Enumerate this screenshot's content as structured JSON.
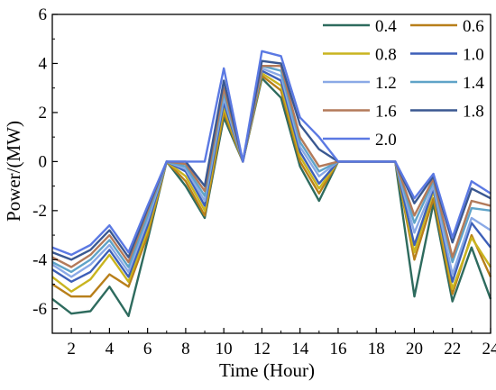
{
  "chart_data": {
    "type": "line",
    "xlabel": "Time (Hour)",
    "ylabel": "Power/(MW)",
    "xlim": [
      1,
      24
    ],
    "ylim": [
      -7,
      6
    ],
    "xticks": [
      2,
      4,
      6,
      8,
      10,
      12,
      14,
      16,
      18,
      20,
      22,
      24
    ],
    "yticks": [
      -6,
      -4,
      -2,
      0,
      2,
      4,
      6
    ],
    "grid": false,
    "legend_position": "top-right",
    "legend_columns": 2,
    "x": [
      1,
      2,
      3,
      4,
      5,
      6,
      7,
      8,
      9,
      10,
      11,
      12,
      13,
      14,
      15,
      16,
      17,
      18,
      19,
      20,
      21,
      22,
      23,
      24
    ],
    "series": [
      {
        "name": "0.4",
        "color": "#2e6b5e",
        "values": [
          -5.6,
          -6.2,
          -6.1,
          -5.1,
          -6.3,
          -3.2,
          0,
          -1.0,
          -2.3,
          1.8,
          0,
          3.4,
          2.6,
          -0.2,
          -1.6,
          0,
          0,
          0,
          0,
          -5.5,
          -1.7,
          -5.7,
          -3.5,
          -5.6
        ]
      },
      {
        "name": "0.6",
        "color": "#b87f1a",
        "values": [
          -5.0,
          -5.5,
          -5.5,
          -4.6,
          -5.1,
          -3.0,
          0,
          -0.8,
          -2.2,
          2.0,
          0,
          3.5,
          2.9,
          0.0,
          -1.3,
          0,
          0,
          0,
          0,
          -4.0,
          -1.5,
          -5.4,
          -3.0,
          -4.7
        ]
      },
      {
        "name": "0.8",
        "color": "#c9b41f",
        "values": [
          -4.7,
          -5.3,
          -4.8,
          -3.8,
          -4.9,
          -2.8,
          0,
          -0.6,
          -2.0,
          2.2,
          0,
          3.6,
          3.1,
          0.2,
          -1.1,
          0,
          0,
          0,
          0,
          -3.7,
          -1.2,
          -5.2,
          -3.1,
          -4.3
        ]
      },
      {
        "name": "1.0",
        "color": "#3d5fb8",
        "values": [
          -4.4,
          -4.9,
          -4.5,
          -3.6,
          -4.7,
          -2.6,
          0,
          -0.4,
          -1.8,
          2.4,
          0,
          3.7,
          3.3,
          0.4,
          -0.9,
          0,
          0,
          0,
          0,
          -3.4,
          -1.1,
          -4.9,
          -2.5,
          -3.5
        ]
      },
      {
        "name": "1.2",
        "color": "#8aa9e6",
        "values": [
          -4.2,
          -4.7,
          -4.2,
          -3.4,
          -4.5,
          -2.4,
          0,
          -0.3,
          -1.6,
          2.6,
          0,
          3.8,
          3.5,
          0.6,
          -0.6,
          0,
          0,
          0,
          0,
          -2.9,
          -1.0,
          -4.6,
          -2.3,
          -2.8
        ]
      },
      {
        "name": "1.4",
        "color": "#5fa3c8",
        "values": [
          -4.1,
          -4.5,
          -4.0,
          -3.2,
          -4.3,
          -2.2,
          0,
          -0.2,
          -1.4,
          2.8,
          0,
          3.9,
          3.7,
          0.8,
          -0.4,
          0,
          0,
          0,
          0,
          -2.5,
          -0.8,
          -4.1,
          -1.9,
          -2.0
        ]
      },
      {
        "name": "1.6",
        "color": "#b37a5a",
        "values": [
          -3.9,
          -4.3,
          -3.8,
          -3.0,
          -4.1,
          -2.0,
          0,
          -0.1,
          -1.2,
          3.0,
          0,
          3.9,
          3.9,
          1.0,
          -0.2,
          0,
          0,
          0,
          0,
          -2.2,
          -0.7,
          -3.9,
          -1.6,
          -1.8
        ]
      },
      {
        "name": "1.8",
        "color": "#3a5891",
        "values": [
          -3.7,
          -4.0,
          -3.6,
          -2.8,
          -3.9,
          -1.9,
          0,
          0,
          -1.0,
          3.3,
          0,
          4.1,
          4.0,
          1.5,
          0.5,
          0,
          0,
          0,
          0,
          -1.7,
          -0.6,
          -3.3,
          -1.1,
          -1.5
        ]
      },
      {
        "name": "2.0",
        "color": "#5b79e3",
        "values": [
          -3.5,
          -3.8,
          -3.4,
          -2.6,
          -3.7,
          -1.8,
          0,
          0,
          0,
          3.8,
          0,
          4.5,
          4.3,
          1.8,
          1.0,
          0,
          0,
          0,
          0,
          -1.5,
          -0.5,
          -3.1,
          -0.8,
          -1.3
        ]
      }
    ]
  }
}
